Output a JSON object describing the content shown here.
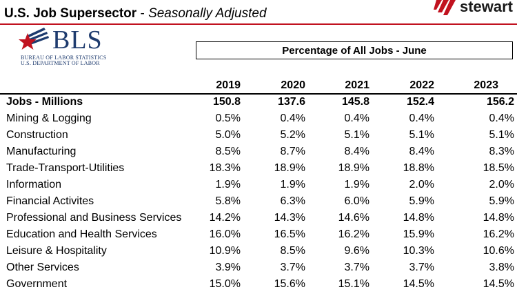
{
  "header": {
    "title_main": "U.S. Job Supersector",
    "title_sep": " - ",
    "title_sub": "Seasonally Adjusted"
  },
  "logos": {
    "stewart_text": "stewart",
    "stewart_color": "#c1121f",
    "bls_word": "BLS",
    "bls_line1": "BUREAU OF LABOR STATISTICS",
    "bls_line2": "U.S. DEPARTMENT OF LABOR",
    "bls_color": "#1e3b6e",
    "bls_star_color": "#c1121f"
  },
  "table": {
    "caption": "Percentage of All Jobs - June",
    "years": [
      "2019",
      "2020",
      "2021",
      "2022",
      "2023"
    ],
    "total_row": {
      "label": "Jobs - Millions",
      "values": [
        "150.8",
        "137.6",
        "145.8",
        "152.4",
        "156.2"
      ]
    },
    "rows": [
      {
        "label": "Mining & Logging",
        "values": [
          "0.5%",
          "0.4%",
          "0.4%",
          "0.4%",
          "0.4%"
        ]
      },
      {
        "label": "Construction",
        "values": [
          "5.0%",
          "5.2%",
          "5.1%",
          "5.1%",
          "5.1%"
        ]
      },
      {
        "label": "Manufacturing",
        "values": [
          "8.5%",
          "8.7%",
          "8.4%",
          "8.4%",
          "8.3%"
        ]
      },
      {
        "label": "Trade-Transport-Utilities",
        "values": [
          "18.3%",
          "18.9%",
          "18.9%",
          "18.8%",
          "18.5%"
        ]
      },
      {
        "label": "Information",
        "values": [
          "1.9%",
          "1.9%",
          "1.9%",
          "2.0%",
          "2.0%"
        ]
      },
      {
        "label": "Financial Activites",
        "values": [
          "5.8%",
          "6.3%",
          "6.0%",
          "5.9%",
          "5.9%"
        ]
      },
      {
        "label": "Professional and Business Services",
        "values": [
          "14.2%",
          "14.3%",
          "14.6%",
          "14.8%",
          "14.8%"
        ]
      },
      {
        "label": "Education and Health Services",
        "values": [
          "16.0%",
          "16.5%",
          "16.2%",
          "15.9%",
          "16.2%"
        ]
      },
      {
        "label": "Leisure & Hospitality",
        "values": [
          "10.9%",
          "8.5%",
          "9.6%",
          "10.3%",
          "10.6%"
        ]
      },
      {
        "label": "Other Services",
        "values": [
          "3.9%",
          "3.7%",
          "3.7%",
          "3.7%",
          "3.8%"
        ]
      },
      {
        "label": "Government",
        "values": [
          "15.0%",
          "15.6%",
          "15.1%",
          "14.5%",
          "14.5%"
        ]
      }
    ]
  }
}
